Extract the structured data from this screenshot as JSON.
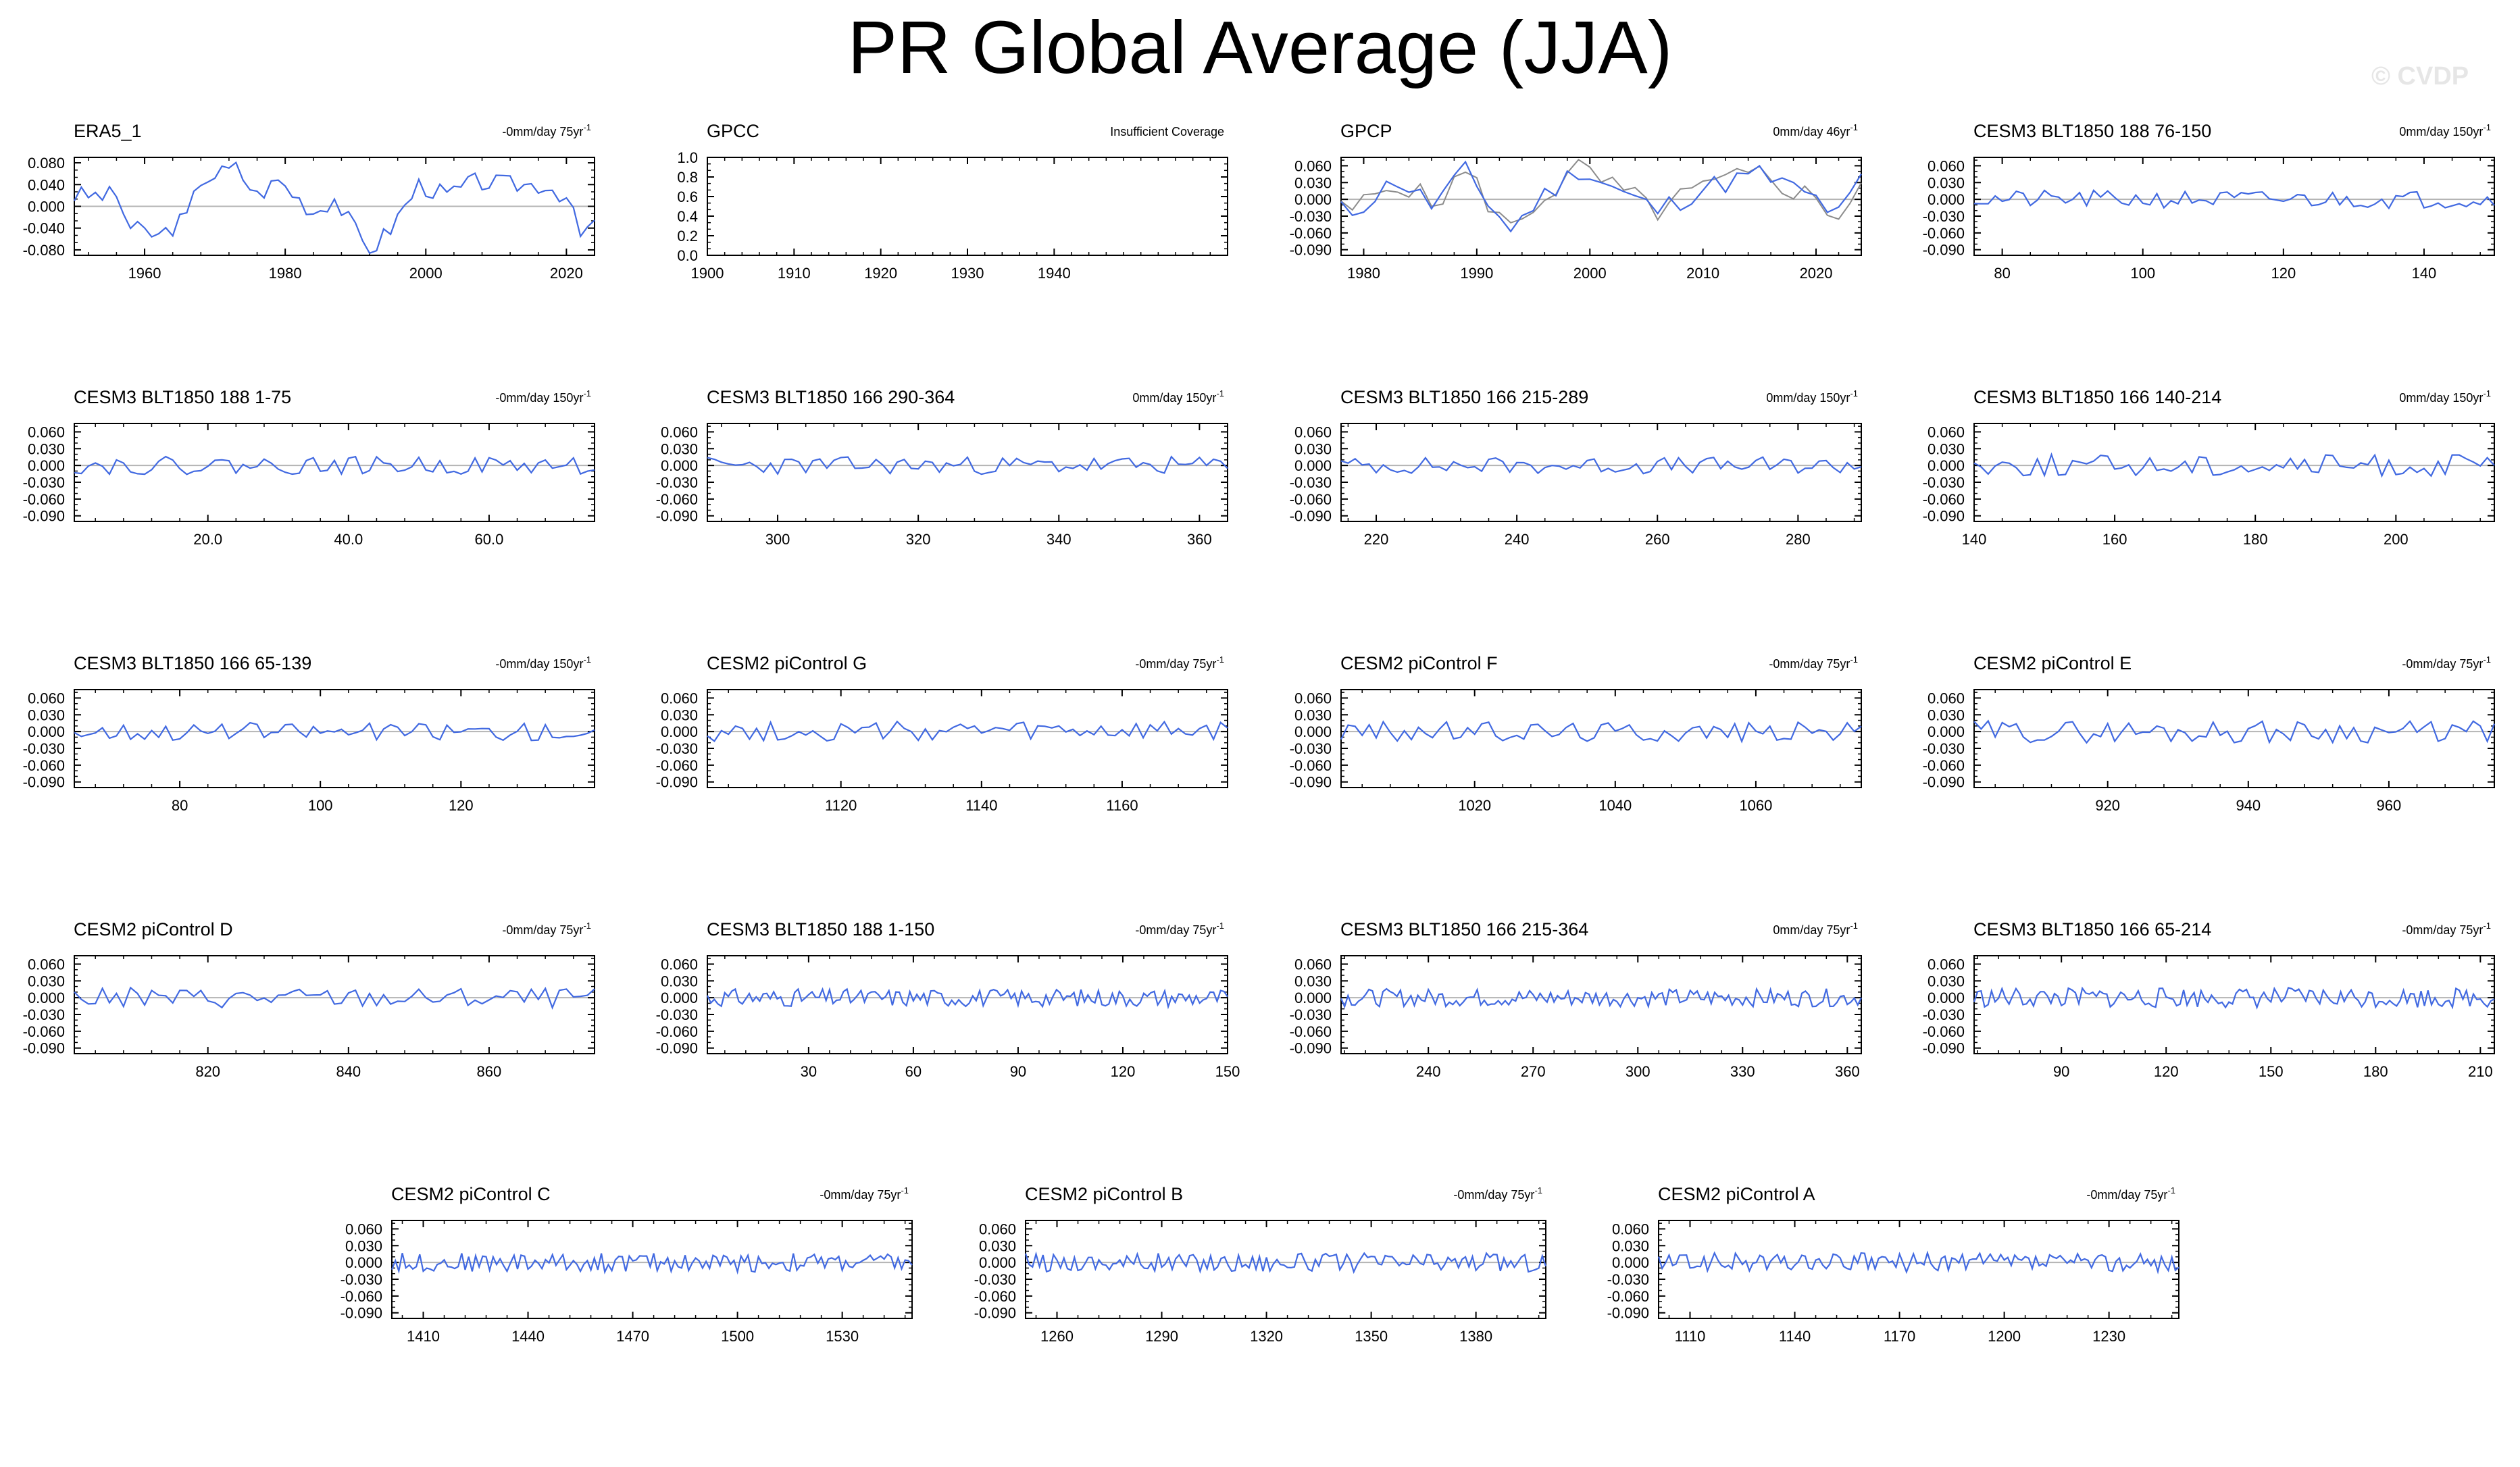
{
  "title": "PR Global Average (JJA)",
  "watermark": "© CVDP",
  "colors": {
    "series": "#4169e1",
    "obs_overlay": "#8c8c8c",
    "zero_line": "#b4b4b4",
    "axis": "#000000"
  },
  "chart_data": [
    {
      "type": "line",
      "title": "ERA5_1",
      "trend": "-0mm/day 75yr",
      "xlim": [
        1950,
        2024
      ],
      "ylim": [
        -0.09,
        0.09
      ],
      "yticks": [
        0.08,
        0.04,
        0.0,
        -0.04,
        -0.08
      ],
      "ytick_labels": [
        "0.080",
        "0.040",
        "0.000",
        "-0.040",
        "-0.080"
      ],
      "xticks": [
        1960,
        1980,
        2000,
        2020
      ],
      "xtick_labels": [
        "1960",
        "1980",
        "2000",
        "2020"
      ],
      "seed": 3,
      "noise": 0.025,
      "key_values": [
        [
          1950,
          0.02
        ],
        [
          1956,
          0.02
        ],
        [
          1958,
          -0.04
        ],
        [
          1962,
          -0.055
        ],
        [
          1966,
          -0.02
        ],
        [
          1968,
          0.05
        ],
        [
          1973,
          0.07
        ],
        [
          1976,
          0.02
        ],
        [
          1979,
          0.048
        ],
        [
          1984,
          -0.01
        ],
        [
          1987,
          0.015
        ],
        [
          1990,
          -0.045
        ],
        [
          1992,
          -0.085
        ],
        [
          1995,
          -0.04
        ],
        [
          1999,
          0.04
        ],
        [
          2003,
          0.02
        ],
        [
          2007,
          0.045
        ],
        [
          2012,
          0.04
        ],
        [
          2017,
          0.04
        ],
        [
          2020,
          0.018
        ],
        [
          2022,
          -0.055
        ],
        [
          2024,
          -0.03
        ]
      ]
    },
    {
      "type": "line",
      "title": "GPCC",
      "trend": "Insufficient Coverage",
      "xlim": [
        1900,
        1960
      ],
      "ylim": [
        0,
        1.0
      ],
      "yticks": [
        1.0,
        0.8,
        0.6,
        0.4,
        0.2,
        0.0
      ],
      "ytick_labels": [
        "1.0",
        "0.8",
        "0.6",
        "0.4",
        "0.2",
        "0.0"
      ],
      "xticks": [
        1900,
        1910,
        1920,
        1930,
        1940
      ],
      "xtick_labels": [
        "1900",
        "1910",
        "1920",
        "1930",
        "1940"
      ],
      "empty": true
    },
    {
      "type": "line",
      "title": "GPCP",
      "trend": "0mm/day 46yr",
      "xlim": [
        1978,
        2024
      ],
      "ylim": [
        -0.1,
        0.075
      ],
      "yticks": [
        0.06,
        0.03,
        0.0,
        -0.03,
        -0.06,
        -0.09
      ],
      "ytick_labels": [
        "0.060",
        "0.030",
        "0.000",
        "-0.030",
        "-0.060",
        "-0.090"
      ],
      "xticks": [
        1980,
        1990,
        2000,
        2010,
        2020
      ],
      "xtick_labels": [
        "1980",
        "1990",
        "2000",
        "2010",
        "2020"
      ],
      "seed": 11,
      "noise": 0.03,
      "overlay_seed": 5,
      "key_values": [
        [
          1979,
          -0.02
        ],
        [
          1983,
          0.035
        ],
        [
          1986,
          -0.01
        ],
        [
          1989,
          0.048
        ],
        [
          1993,
          -0.055
        ],
        [
          1995,
          -0.01
        ],
        [
          1999,
          0.055
        ],
        [
          2003,
          0.01
        ],
        [
          2006,
          -0.02
        ],
        [
          2010,
          0.02
        ],
        [
          2015,
          0.045
        ],
        [
          2020,
          0.0
        ],
        [
          2022,
          -0.03
        ],
        [
          2024,
          0.032
        ]
      ]
    },
    {
      "type": "line",
      "title": "CESM3 BLT1850 188 76-150",
      "trend": "0mm/day 150yr",
      "xlim": [
        76,
        150
      ],
      "ylim": [
        -0.1,
        0.075
      ],
      "yticks": [
        0.06,
        0.03,
        0.0,
        -0.03,
        -0.06,
        -0.09
      ],
      "ytick_labels": [
        "0.060",
        "0.030",
        "0.000",
        "-0.030",
        "-0.060",
        "-0.090"
      ],
      "xticks": [
        80,
        100,
        120,
        140
      ],
      "xtick_labels": [
        "80",
        "100",
        "120",
        "140"
      ],
      "seed": 21,
      "noise": 0.016
    },
    {
      "type": "line",
      "title": "CESM3 BLT1850 188 1-75",
      "trend": "-0mm/day 150yr",
      "xlim": [
        1,
        75
      ],
      "ylim": [
        -0.1,
        0.075
      ],
      "yticks": [
        0.06,
        0.03,
        0.0,
        -0.03,
        -0.06,
        -0.09
      ],
      "ytick_labels": [
        "0.060",
        "0.030",
        "0.000",
        "-0.030",
        "-0.060",
        "-0.090"
      ],
      "xticks": [
        20,
        40,
        60
      ],
      "xtick_labels": [
        "20.0",
        "40.0",
        "60.0"
      ],
      "seed": 22,
      "noise": 0.016
    },
    {
      "type": "line",
      "title": "CESM3 BLT1850 166 290-364",
      "trend": "0mm/day 150yr",
      "xlim": [
        290,
        364
      ],
      "ylim": [
        -0.1,
        0.075
      ],
      "yticks": [
        0.06,
        0.03,
        0.0,
        -0.03,
        -0.06,
        -0.09
      ],
      "ytick_labels": [
        "0.060",
        "0.030",
        "0.000",
        "-0.030",
        "-0.060",
        "-0.090"
      ],
      "xticks": [
        300,
        320,
        340,
        360
      ],
      "xtick_labels": [
        "300",
        "320",
        "340",
        "360"
      ],
      "seed": 23,
      "noise": 0.016
    },
    {
      "type": "line",
      "title": "CESM3 BLT1850 166 215-289",
      "trend": "0mm/day 150yr",
      "xlim": [
        215,
        289
      ],
      "ylim": [
        -0.1,
        0.075
      ],
      "yticks": [
        0.06,
        0.03,
        0.0,
        -0.03,
        -0.06,
        -0.09
      ],
      "ytick_labels": [
        "0.060",
        "0.030",
        "0.000",
        "-0.030",
        "-0.060",
        "-0.090"
      ],
      "xticks": [
        220,
        240,
        260,
        280
      ],
      "xtick_labels": [
        "220",
        "240",
        "260",
        "280"
      ],
      "seed": 24,
      "noise": 0.015
    },
    {
      "type": "line",
      "title": "CESM3 BLT1850 166 140-214",
      "trend": "0mm/day 150yr",
      "xlim": [
        140,
        214
      ],
      "ylim": [
        -0.1,
        0.075
      ],
      "yticks": [
        0.06,
        0.03,
        0.0,
        -0.03,
        -0.06,
        -0.09
      ],
      "ytick_labels": [
        "0.060",
        "0.030",
        "0.000",
        "-0.030",
        "-0.060",
        "-0.090"
      ],
      "xticks": [
        140,
        160,
        180,
        200
      ],
      "xtick_labels": [
        "140",
        "160",
        "180",
        "200"
      ],
      "seed": 25,
      "noise": 0.02
    },
    {
      "type": "line",
      "title": "CESM3 BLT1850 166 65-139",
      "trend": "-0mm/day 150yr",
      "xlim": [
        65,
        139
      ],
      "ylim": [
        -0.1,
        0.075
      ],
      "yticks": [
        0.06,
        0.03,
        0.0,
        -0.03,
        -0.06,
        -0.09
      ],
      "ytick_labels": [
        "0.060",
        "0.030",
        "0.000",
        "-0.030",
        "-0.060",
        "-0.090"
      ],
      "xticks": [
        80,
        100,
        120
      ],
      "xtick_labels": [
        "80",
        "100",
        "120"
      ],
      "seed": 26,
      "noise": 0.016
    },
    {
      "type": "line",
      "title": "CESM2 piControl G",
      "trend": "-0mm/day 75yr",
      "xlim": [
        1101,
        1175
      ],
      "ylim": [
        -0.1,
        0.075
      ],
      "yticks": [
        0.06,
        0.03,
        0.0,
        -0.03,
        -0.06,
        -0.09
      ],
      "ytick_labels": [
        "0.060",
        "0.030",
        "0.000",
        "-0.030",
        "-0.060",
        "-0.090"
      ],
      "xticks": [
        1120,
        1140,
        1160
      ],
      "xtick_labels": [
        "1120",
        "1140",
        "1160"
      ],
      "seed": 27,
      "noise": 0.018
    },
    {
      "type": "line",
      "title": "CESM2 piControl F",
      "trend": "-0mm/day 75yr",
      "xlim": [
        1001,
        1075
      ],
      "ylim": [
        -0.1,
        0.075
      ],
      "yticks": [
        0.06,
        0.03,
        0.0,
        -0.03,
        -0.06,
        -0.09
      ],
      "ytick_labels": [
        "0.060",
        "0.030",
        "0.000",
        "-0.030",
        "-0.060",
        "-0.090"
      ],
      "xticks": [
        1020,
        1040,
        1060
      ],
      "xtick_labels": [
        "1020",
        "1040",
        "1060"
      ],
      "seed": 28,
      "noise": 0.018
    },
    {
      "type": "line",
      "title": "CESM2 piControl E",
      "trend": "-0mm/day 75yr",
      "xlim": [
        901,
        975
      ],
      "ylim": [
        -0.1,
        0.075
      ],
      "yticks": [
        0.06,
        0.03,
        0.0,
        -0.03,
        -0.06,
        -0.09
      ],
      "ytick_labels": [
        "0.060",
        "0.030",
        "0.000",
        "-0.030",
        "-0.060",
        "-0.090"
      ],
      "xticks": [
        920,
        940,
        960
      ],
      "xtick_labels": [
        "920",
        "940",
        "960"
      ],
      "seed": 29,
      "noise": 0.02
    },
    {
      "type": "line",
      "title": "CESM2 piControl D",
      "trend": "-0mm/day 75yr",
      "xlim": [
        801,
        875
      ],
      "ylim": [
        -0.1,
        0.075
      ],
      "yticks": [
        0.06,
        0.03,
        0.0,
        -0.03,
        -0.06,
        -0.09
      ],
      "ytick_labels": [
        "0.060",
        "0.030",
        "0.000",
        "-0.030",
        "-0.060",
        "-0.090"
      ],
      "xticks": [
        820,
        840,
        860
      ],
      "xtick_labels": [
        "820",
        "840",
        "860"
      ],
      "seed": 30,
      "noise": 0.018
    },
    {
      "type": "line",
      "title": "CESM3 BLT1850 188 1-150",
      "trend": "-0mm/day 75yr",
      "xlim": [
        1,
        150
      ],
      "ylim": [
        -0.1,
        0.075
      ],
      "yticks": [
        0.06,
        0.03,
        0.0,
        -0.03,
        -0.06,
        -0.09
      ],
      "ytick_labels": [
        "0.060",
        "0.030",
        "0.000",
        "-0.030",
        "-0.060",
        "-0.090"
      ],
      "xticks": [
        30,
        60,
        90,
        120,
        150
      ],
      "xtick_labels": [
        "30",
        "60",
        "90",
        "120",
        "150"
      ],
      "seed": 31,
      "noise": 0.016
    },
    {
      "type": "line",
      "title": "CESM3 BLT1850 166 215-364",
      "trend": "0mm/day 75yr",
      "xlim": [
        215,
        364
      ],
      "ylim": [
        -0.1,
        0.075
      ],
      "yticks": [
        0.06,
        0.03,
        0.0,
        -0.03,
        -0.06,
        -0.09
      ],
      "ytick_labels": [
        "0.060",
        "0.030",
        "0.000",
        "-0.030",
        "-0.060",
        "-0.090"
      ],
      "xticks": [
        240,
        270,
        300,
        330,
        360
      ],
      "xtick_labels": [
        "240",
        "270",
        "300",
        "330",
        "360"
      ],
      "seed": 32,
      "noise": 0.016
    },
    {
      "type": "line",
      "title": "CESM3 BLT1850 166 65-214",
      "trend": "-0mm/day 75yr",
      "xlim": [
        65,
        214
      ],
      "ylim": [
        -0.1,
        0.075
      ],
      "yticks": [
        0.06,
        0.03,
        0.0,
        -0.03,
        -0.06,
        -0.09
      ],
      "ytick_labels": [
        "0.060",
        "0.030",
        "0.000",
        "-0.030",
        "-0.060",
        "-0.090"
      ],
      "xticks": [
        90,
        120,
        150,
        180,
        210
      ],
      "xtick_labels": [
        "90",
        "120",
        "150",
        "180",
        "210"
      ],
      "seed": 33,
      "noise": 0.018
    },
    {
      "type": "line",
      "title": "CESM2 piControl C",
      "trend": "-0mm/day 75yr",
      "xlim": [
        1401,
        1550
      ],
      "ylim": [
        -0.1,
        0.075
      ],
      "yticks": [
        0.06,
        0.03,
        0.0,
        -0.03,
        -0.06,
        -0.09
      ],
      "ytick_labels": [
        "0.060",
        "0.030",
        "0.000",
        "-0.030",
        "-0.060",
        "-0.090"
      ],
      "xticks": [
        1410,
        1440,
        1470,
        1500,
        1530
      ],
      "xtick_labels": [
        "1410",
        "1440",
        "1470",
        "1500",
        "1530"
      ],
      "seed": 34,
      "noise": 0.017
    },
    {
      "type": "line",
      "title": "CESM2 piControl B",
      "trend": "-0mm/day 75yr",
      "xlim": [
        1251,
        1400
      ],
      "ylim": [
        -0.1,
        0.075
      ],
      "yticks": [
        0.06,
        0.03,
        0.0,
        -0.03,
        -0.06,
        -0.09
      ],
      "ytick_labels": [
        "0.060",
        "0.030",
        "0.000",
        "-0.030",
        "-0.060",
        "-0.090"
      ],
      "xticks": [
        1260,
        1290,
        1320,
        1350,
        1380
      ],
      "xtick_labels": [
        "1260",
        "1290",
        "1320",
        "1350",
        "1380"
      ],
      "seed": 35,
      "noise": 0.017
    },
    {
      "type": "line",
      "title": "CESM2 piControl A",
      "trend": "-0mm/day 75yr",
      "xlim": [
        1101,
        1250
      ],
      "ylim": [
        -0.1,
        0.075
      ],
      "yticks": [
        0.06,
        0.03,
        0.0,
        -0.03,
        -0.06,
        -0.09
      ],
      "ytick_labels": [
        "0.060",
        "0.030",
        "0.000",
        "-0.030",
        "-0.060",
        "-0.090"
      ],
      "xticks": [
        1110,
        1140,
        1170,
        1200,
        1230
      ],
      "xtick_labels": [
        "1110",
        "1140",
        "1170",
        "1200",
        "1230"
      ],
      "seed": 36,
      "noise": 0.017
    }
  ]
}
